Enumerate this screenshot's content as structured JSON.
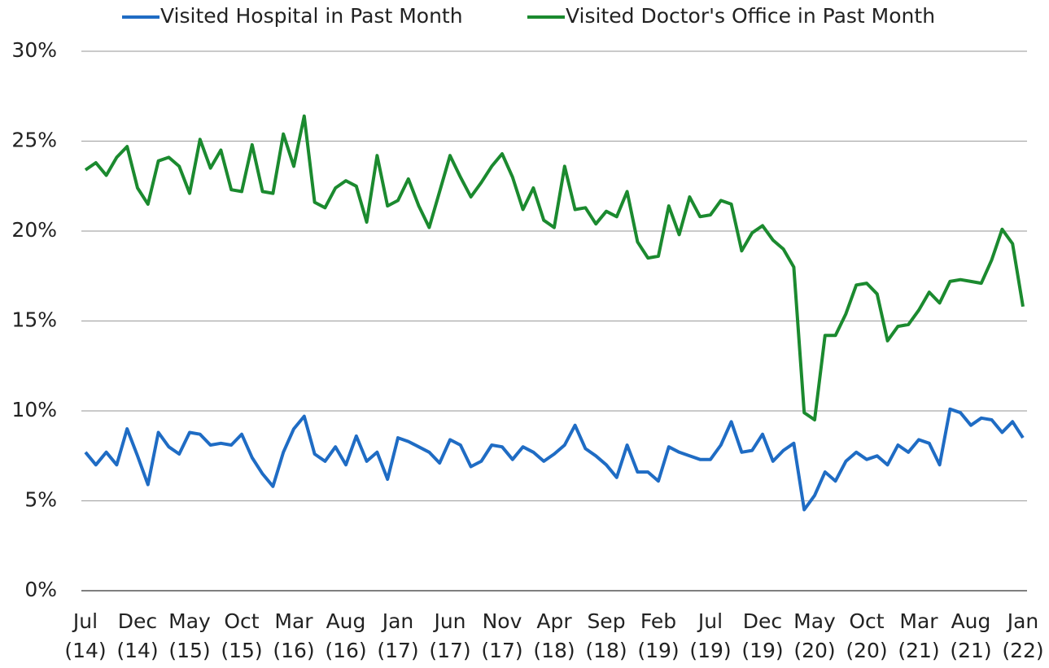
{
  "chart_data": {
    "type": "line",
    "categories": [
      "Jul (14)",
      null,
      null,
      null,
      null,
      "Dec (14)",
      null,
      null,
      null,
      null,
      "May (15)",
      null,
      null,
      null,
      null,
      "Oct (15)",
      null,
      null,
      null,
      null,
      "Mar (16)",
      null,
      null,
      null,
      null,
      "Aug (16)",
      null,
      null,
      null,
      null,
      "Jan (17)",
      null,
      null,
      null,
      null,
      "Jun (17)",
      null,
      null,
      null,
      null,
      "Nov (17)",
      null,
      null,
      null,
      null,
      "Apr (18)",
      null,
      null,
      null,
      null,
      "Sep (18)",
      null,
      null,
      null,
      null,
      "Feb (19)",
      null,
      null,
      null,
      null,
      "Jul (19)",
      null,
      null,
      null,
      null,
      "Dec (19)",
      null,
      null,
      null,
      null,
      "May (20)",
      null,
      null,
      null,
      null,
      "Oct (20)",
      null,
      null,
      null,
      null,
      "Mar (21)",
      null,
      null,
      null,
      null,
      "Aug (21)",
      null,
      null,
      null,
      null,
      "Jan (22)"
    ],
    "series": [
      {
        "name": "Visited Hospital in Past Month",
        "color": "#1f6cc4",
        "values": [
          7.7,
          7.0,
          7.7,
          7.0,
          9.0,
          7.5,
          5.9,
          8.8,
          8.0,
          7.6,
          8.8,
          8.7,
          8.1,
          8.2,
          8.1,
          8.7,
          7.4,
          6.5,
          5.8,
          7.7,
          9.0,
          9.7,
          7.6,
          7.2,
          8.0,
          7.0,
          8.6,
          7.2,
          7.7,
          6.2,
          8.5,
          8.3,
          8.0,
          7.7,
          7.1,
          8.4,
          8.1,
          6.9,
          7.2,
          8.1,
          8.0,
          7.3,
          8.0,
          7.7,
          7.2,
          7.6,
          8.1,
          9.2,
          7.9,
          7.5,
          7.0,
          6.3,
          8.1,
          6.6,
          6.6,
          6.1,
          8.0,
          7.7,
          7.5,
          7.3,
          7.3,
          8.1,
          9.4,
          7.7,
          7.8,
          8.7,
          7.2,
          7.8,
          8.2,
          4.5,
          5.3,
          6.6,
          6.1,
          7.2,
          7.7,
          7.3,
          7.5,
          7.0,
          8.1,
          7.7,
          8.4,
          8.2,
          7.0,
          10.1,
          9.9,
          9.2,
          9.6,
          9.5,
          8.8,
          9.4,
          8.5
        ]
      },
      {
        "name": "Visited Doctor's Office in Past Month",
        "color": "#1b8a2f",
        "values": [
          23.4,
          23.8,
          23.1,
          24.1,
          24.7,
          22.4,
          21.5,
          23.9,
          24.1,
          23.6,
          22.1,
          25.1,
          23.5,
          24.5,
          22.3,
          22.2,
          24.8,
          22.2,
          22.1,
          25.4,
          23.6,
          26.4,
          21.6,
          21.3,
          22.4,
          22.8,
          22.5,
          20.5,
          24.2,
          21.4,
          21.7,
          22.9,
          21.4,
          20.2,
          22.2,
          24.2,
          23.0,
          21.9,
          22.7,
          23.6,
          24.3,
          23.0,
          21.2,
          22.4,
          20.6,
          20.2,
          23.6,
          21.2,
          21.3,
          20.4,
          21.1,
          20.8,
          22.2,
          19.4,
          18.5,
          18.6,
          21.4,
          19.8,
          21.9,
          20.8,
          20.9,
          21.7,
          21.5,
          18.9,
          19.9,
          20.3,
          19.5,
          19.0,
          18.0,
          9.9,
          9.5,
          14.2,
          14.2,
          15.4,
          17.0,
          17.1,
          16.5,
          13.9,
          14.7,
          14.8,
          15.6,
          16.6,
          16.0,
          17.2,
          17.3,
          17.2,
          17.1,
          18.4,
          20.1,
          19.3,
          15.8
        ]
      }
    ],
    "ylim": [
      0,
      30
    ],
    "yticks": [
      {
        "value": 0,
        "label": "0%"
      },
      {
        "value": 5,
        "label": "5%"
      },
      {
        "value": 10,
        "label": "10%"
      },
      {
        "value": 15,
        "label": "15%"
      },
      {
        "value": 20,
        "label": "20%"
      },
      {
        "value": 25,
        "label": "25%"
      },
      {
        "value": 30,
        "label": "30%"
      }
    ],
    "grid": true,
    "legend": "top"
  }
}
